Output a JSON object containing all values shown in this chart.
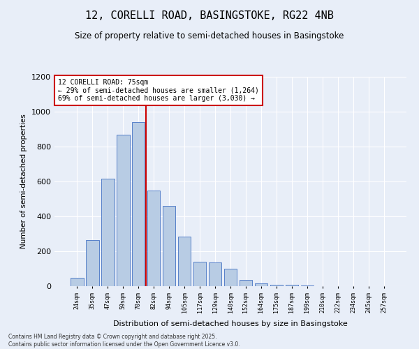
{
  "title": "12, CORELLI ROAD, BASINGSTOKE, RG22 4NB",
  "subtitle": "Size of property relative to semi-detached houses in Basingstoke",
  "xlabel": "Distribution of semi-detached houses by size in Basingstoke",
  "ylabel": "Number of semi-detached properties",
  "footer": "Contains HM Land Registry data © Crown copyright and database right 2025.\nContains public sector information licensed under the Open Government Licence v3.0.",
  "categories": [
    "24sqm",
    "35sqm",
    "47sqm",
    "59sqm",
    "70sqm",
    "82sqm",
    "94sqm",
    "105sqm",
    "117sqm",
    "129sqm",
    "140sqm",
    "152sqm",
    "164sqm",
    "175sqm",
    "187sqm",
    "199sqm",
    "210sqm",
    "222sqm",
    "234sqm",
    "245sqm",
    "257sqm"
  ],
  "values": [
    50,
    265,
    615,
    870,
    940,
    550,
    460,
    285,
    140,
    135,
    100,
    35,
    15,
    10,
    10,
    5,
    0,
    0,
    0,
    0,
    0
  ],
  "bar_color": "#b8cce4",
  "bar_edge_color": "#4472c4",
  "vline_color": "#cc0000",
  "vline_pos": 4.5,
  "annotation_title": "12 CORELLI ROAD: 75sqm",
  "annotation_line1": "← 29% of semi-detached houses are smaller (1,264)",
  "annotation_line2": "69% of semi-detached houses are larger (3,030) →",
  "annotation_box_color": "#cc0000",
  "ylim": [
    0,
    1200
  ],
  "yticks": [
    0,
    200,
    400,
    600,
    800,
    1000,
    1200
  ],
  "background_color": "#e8eef8",
  "plot_background": "#e8eef8",
  "grid_color": "#ffffff"
}
